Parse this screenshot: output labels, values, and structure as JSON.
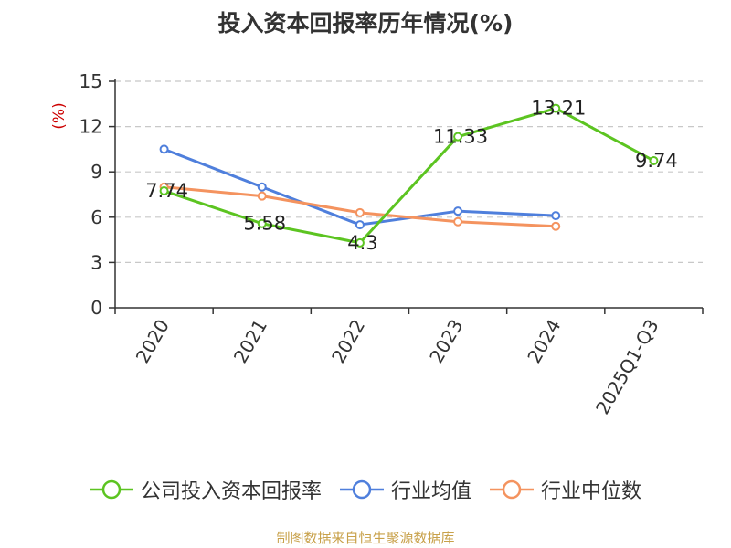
{
  "title": "投入资本回报率历年情况(%)",
  "source_text": "制图数据来自恒生聚源数据库",
  "colors": {
    "company": "#5cc421",
    "industry_avg": "#4f7fdc",
    "industry_median": "#f4935f",
    "grid": "#c8c8c8",
    "ylabel": "#cc0000"
  },
  "chart_data": {
    "type": "line",
    "title": "投入资本回报率历年情况(%)",
    "xlabel": "",
    "ylabel": "(%)",
    "categories": [
      "2020",
      "2021",
      "2022",
      "2023",
      "2024",
      "2025Q1-Q3"
    ],
    "yticks": [
      "0",
      "3",
      "6",
      "9",
      "12",
      "15"
    ],
    "ylim": [
      0,
      15
    ],
    "grid": true,
    "legend_position": "bottom",
    "series": [
      {
        "name": "公司投入资本回报率",
        "values": [
          7.74,
          5.58,
          4.3,
          11.33,
          13.21,
          9.74
        ],
        "labels": [
          "7.74",
          "5.58",
          "4.3",
          "11.33",
          "13.21",
          "9.74"
        ]
      },
      {
        "name": "行业均值",
        "values": [
          10.5,
          8.0,
          5.5,
          6.4,
          6.1,
          null
        ]
      },
      {
        "name": "行业中位数",
        "values": [
          8.0,
          7.4,
          6.3,
          5.7,
          5.4,
          null
        ]
      }
    ]
  }
}
